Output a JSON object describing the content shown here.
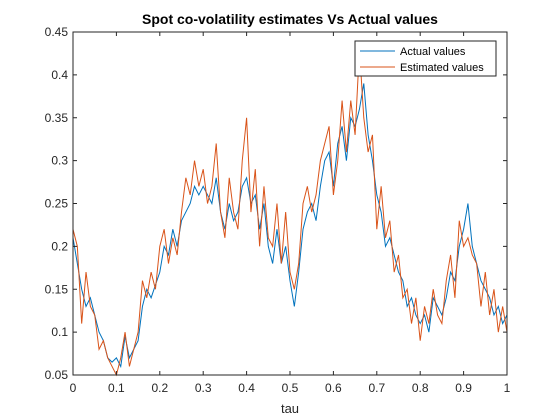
{
  "chart_data": {
    "type": "line",
    "title": "Spot co-volatility estimates Vs Actual values",
    "xlabel": "tau",
    "ylabel": "",
    "xlim": [
      0,
      1
    ],
    "ylim": [
      0.05,
      0.45
    ],
    "xticks": [
      "0",
      "0.1",
      "0.2",
      "0.3",
      "0.4",
      "0.5",
      "0.6",
      "0.7",
      "0.8",
      "0.9",
      "1"
    ],
    "yticks": [
      "0.05",
      "0.1",
      "0.15",
      "0.2",
      "0.25",
      "0.3",
      "0.35",
      "0.4",
      "0.45"
    ],
    "grid": false,
    "legend_position": "top-right",
    "x": [
      0,
      0.01,
      0.02,
      0.03,
      0.04,
      0.05,
      0.06,
      0.07,
      0.08,
      0.09,
      0.1,
      0.11,
      0.12,
      0.13,
      0.14,
      0.15,
      0.16,
      0.17,
      0.18,
      0.19,
      0.2,
      0.21,
      0.22,
      0.23,
      0.24,
      0.25,
      0.26,
      0.27,
      0.28,
      0.29,
      0.3,
      0.31,
      0.32,
      0.33,
      0.34,
      0.35,
      0.36,
      0.37,
      0.38,
      0.39,
      0.4,
      0.41,
      0.42,
      0.43,
      0.44,
      0.45,
      0.46,
      0.47,
      0.48,
      0.49,
      0.5,
      0.51,
      0.52,
      0.53,
      0.54,
      0.55,
      0.56,
      0.57,
      0.58,
      0.59,
      0.6,
      0.61,
      0.62,
      0.63,
      0.64,
      0.65,
      0.66,
      0.67,
      0.68,
      0.69,
      0.7,
      0.71,
      0.72,
      0.73,
      0.74,
      0.75,
      0.76,
      0.77,
      0.78,
      0.79,
      0.8,
      0.81,
      0.82,
      0.83,
      0.84,
      0.85,
      0.86,
      0.87,
      0.88,
      0.89,
      0.9,
      0.91,
      0.92,
      0.93,
      0.94,
      0.95,
      0.96,
      0.97,
      0.98,
      0.99,
      1
    ],
    "series": [
      {
        "name": "Actual values",
        "color": "#0072BD",
        "values": [
          0.21,
          0.18,
          0.15,
          0.13,
          0.14,
          0.12,
          0.1,
          0.09,
          0.07,
          0.065,
          0.07,
          0.06,
          0.095,
          0.07,
          0.08,
          0.09,
          0.13,
          0.15,
          0.14,
          0.155,
          0.17,
          0.2,
          0.19,
          0.22,
          0.2,
          0.23,
          0.24,
          0.25,
          0.27,
          0.26,
          0.27,
          0.26,
          0.25,
          0.28,
          0.24,
          0.22,
          0.25,
          0.23,
          0.24,
          0.27,
          0.28,
          0.25,
          0.26,
          0.22,
          0.25,
          0.2,
          0.18,
          0.22,
          0.18,
          0.2,
          0.16,
          0.13,
          0.17,
          0.22,
          0.24,
          0.25,
          0.23,
          0.27,
          0.3,
          0.31,
          0.27,
          0.32,
          0.34,
          0.3,
          0.35,
          0.34,
          0.36,
          0.39,
          0.33,
          0.3,
          0.26,
          0.24,
          0.2,
          0.21,
          0.19,
          0.17,
          0.16,
          0.13,
          0.14,
          0.12,
          0.11,
          0.12,
          0.1,
          0.14,
          0.13,
          0.12,
          0.14,
          0.17,
          0.16,
          0.2,
          0.22,
          0.25,
          0.2,
          0.18,
          0.16,
          0.15,
          0.14,
          0.12,
          0.13,
          0.11,
          0.12
        ]
      },
      {
        "name": "Estimated values",
        "color": "#D95319",
        "values": [
          0.22,
          0.2,
          0.11,
          0.17,
          0.13,
          0.12,
          0.08,
          0.09,
          0.07,
          0.06,
          0.05,
          0.07,
          0.1,
          0.06,
          0.08,
          0.1,
          0.16,
          0.14,
          0.17,
          0.15,
          0.2,
          0.22,
          0.18,
          0.21,
          0.19,
          0.24,
          0.28,
          0.26,
          0.3,
          0.27,
          0.29,
          0.25,
          0.27,
          0.32,
          0.24,
          0.21,
          0.28,
          0.24,
          0.22,
          0.3,
          0.35,
          0.24,
          0.29,
          0.2,
          0.27,
          0.21,
          0.2,
          0.25,
          0.18,
          0.24,
          0.17,
          0.15,
          0.18,
          0.25,
          0.27,
          0.24,
          0.26,
          0.3,
          0.32,
          0.34,
          0.26,
          0.3,
          0.37,
          0.31,
          0.37,
          0.33,
          0.43,
          0.35,
          0.31,
          0.33,
          0.22,
          0.27,
          0.21,
          0.23,
          0.17,
          0.19,
          0.14,
          0.15,
          0.11,
          0.14,
          0.09,
          0.13,
          0.11,
          0.15,
          0.12,
          0.11,
          0.16,
          0.19,
          0.14,
          0.23,
          0.2,
          0.21,
          0.19,
          0.18,
          0.13,
          0.17,
          0.12,
          0.15,
          0.1,
          0.13,
          0.1
        ]
      }
    ]
  }
}
